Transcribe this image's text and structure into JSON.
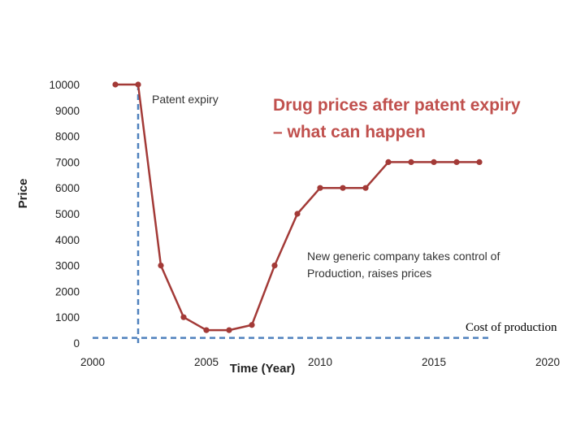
{
  "chart_data": {
    "type": "line",
    "title_lines": [
      "Drug prices after patent expiry",
      "– what can happen"
    ],
    "xlabel": "Time (Year)",
    "ylabel": "Price",
    "xlim": [
      2000,
      2020
    ],
    "ylim": [
      0,
      10000
    ],
    "x_ticks": [
      2000,
      2005,
      2010,
      2015,
      2020
    ],
    "y_ticks": [
      0,
      1000,
      2000,
      3000,
      4000,
      5000,
      6000,
      7000,
      8000,
      9000,
      10000
    ],
    "grid": false,
    "series": [
      {
        "color": "#a33a37",
        "x": [
          2001,
          2002,
          2003,
          2004,
          2005,
          2006,
          2007,
          2008,
          2009,
          2010,
          2011,
          2012,
          2013,
          2014,
          2015,
          2016,
          2017
        ],
        "y": [
          10000,
          10000,
          3000,
          1000,
          500,
          500,
          700,
          3000,
          5000,
          6000,
          6000,
          6000,
          7000,
          7000,
          7000,
          7000,
          7000
        ]
      }
    ],
    "reference_lines": {
      "patent_expiry": {
        "x": 2002,
        "label": "Patent expiry",
        "color": "#4f81bd"
      },
      "cost_of_production": {
        "y": 200,
        "label": "Cost of production",
        "color": "#4f81bd"
      }
    },
    "annotation": {
      "lines": [
        "New generic company takes control of",
        "Production, raises prices"
      ]
    }
  }
}
